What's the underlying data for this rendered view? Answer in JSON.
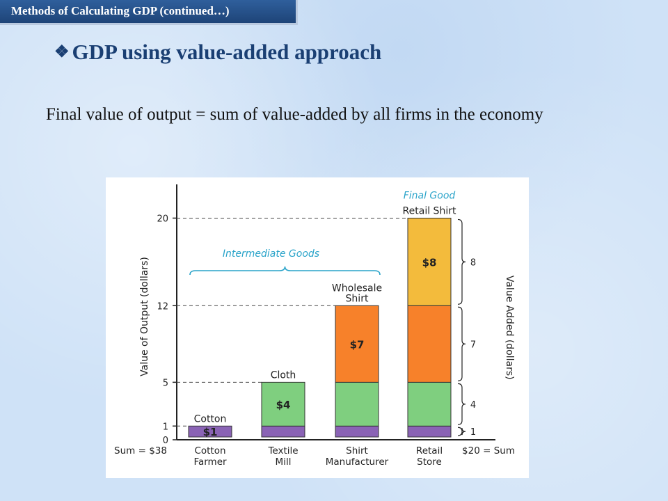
{
  "slide": {
    "header": "Methods of Calculating GDP (continued…)",
    "bullet_symbol": "❖",
    "heading": "GDP using value-added approach",
    "body": "Final value of output = sum of value-added by all firms in the economy"
  },
  "chart_data": {
    "type": "bar",
    "stacked": true,
    "ylabel": "Value of Output (dollars)",
    "y2label": "Value Added (dollars)",
    "ylim": [
      0,
      22
    ],
    "yticks": [
      0,
      1,
      5,
      12,
      20
    ],
    "categories": [
      "Cotton Farmer",
      "Textile Mill",
      "Shirt Manufacturer",
      "Retail Store"
    ],
    "category_lines": [
      [
        "Cotton",
        "Farmer"
      ],
      [
        "Textile",
        "Mill"
      ],
      [
        "Shirt",
        "Manufacturer"
      ],
      [
        "Retail",
        "Store"
      ]
    ],
    "product_labels": [
      [
        "Cotton"
      ],
      [
        "Cloth"
      ],
      [
        "Wholesale",
        "Shirt"
      ],
      [
        "Retail Shirt"
      ]
    ],
    "totals": [
      1,
      5,
      12,
      20
    ],
    "series": [
      {
        "color": "#8a63b5",
        "values": [
          1,
          1,
          1,
          1
        ]
      },
      {
        "color": "#7fcf7f",
        "values": [
          0,
          4,
          4,
          4
        ]
      },
      {
        "color": "#f7812a",
        "values": [
          0,
          0,
          7,
          7
        ]
      },
      {
        "color": "#f3bb3c",
        "values": [
          0,
          0,
          0,
          8
        ]
      }
    ],
    "value_added": [
      1,
      4,
      7,
      8
    ],
    "value_added_labels": [
      "$1",
      "$4",
      "$7",
      "$8"
    ],
    "right_brace_labels": [
      "1",
      "4",
      "7",
      "8"
    ],
    "intermediate_label": "Intermediate Goods",
    "final_label": "Final Good",
    "sum_left": "Sum = $38",
    "sum_right": "$20 = Sum",
    "colors": {
      "accent": "#29a3c9",
      "axis": "#222222",
      "edge": "#333333"
    }
  }
}
